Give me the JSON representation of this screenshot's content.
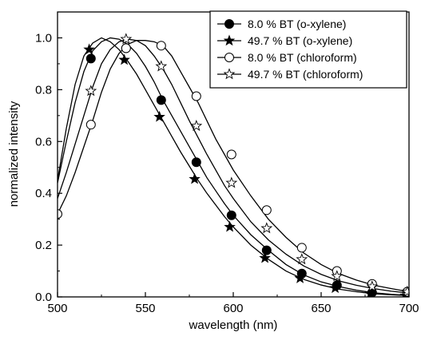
{
  "chart_data": {
    "type": "line",
    "xlabel": "wavelength (nm)",
    "ylabel": "normalized intensity",
    "xlim": [
      500,
      700
    ],
    "ylim": [
      0.0,
      1.1
    ],
    "x_ticks": [
      "500",
      "550",
      "600",
      "650",
      "700"
    ],
    "y_ticks": [
      "0.0",
      "0.2",
      "0.4",
      "0.6",
      "0.8",
      "1.0"
    ],
    "grid": false,
    "legend_position": "top-right",
    "series": [
      {
        "name": "8.0 % BT (o-xylene)",
        "marker": "filled-circle",
        "color": "#000000",
        "line_x": [
          500,
          505,
          510,
          515,
          520,
          525,
          530,
          535,
          540,
          545,
          550,
          555,
          560,
          565,
          570,
          575,
          580,
          585,
          590,
          595,
          600,
          610,
          620,
          630,
          640,
          650,
          660,
          670,
          680,
          690,
          700
        ],
        "line_y": [
          0.44,
          0.6,
          0.75,
          0.87,
          0.95,
          0.985,
          1.0,
          0.995,
          0.975,
          0.94,
          0.89,
          0.83,
          0.76,
          0.7,
          0.64,
          0.58,
          0.52,
          0.46,
          0.41,
          0.36,
          0.315,
          0.24,
          0.18,
          0.125,
          0.085,
          0.058,
          0.04,
          0.026,
          0.016,
          0.01,
          0.006
        ],
        "marker_x": [
          519,
          539,
          559,
          579,
          599,
          619,
          639,
          659,
          679,
          699
        ],
        "marker_y": [
          0.92,
          0.96,
          0.76,
          0.52,
          0.315,
          0.18,
          0.09,
          0.045,
          0.017,
          0.007
        ]
      },
      {
        "name": "49.7 % BT (o-xylene)",
        "marker": "filled-star",
        "color": "#000000",
        "line_x": [
          500,
          505,
          510,
          515,
          520,
          525,
          530,
          535,
          540,
          545,
          550,
          555,
          560,
          565,
          570,
          575,
          580,
          585,
          590,
          595,
          600,
          610,
          620,
          630,
          640,
          650,
          660,
          670,
          680,
          690,
          700
        ],
        "line_y": [
          0.45,
          0.65,
          0.82,
          0.93,
          0.98,
          1.0,
          0.985,
          0.955,
          0.91,
          0.86,
          0.8,
          0.74,
          0.68,
          0.62,
          0.56,
          0.505,
          0.45,
          0.4,
          0.355,
          0.31,
          0.27,
          0.2,
          0.145,
          0.1,
          0.068,
          0.046,
          0.03,
          0.02,
          0.012,
          0.008,
          0.005
        ],
        "marker_x": [
          518,
          538,
          558,
          578,
          598,
          618,
          638,
          658,
          678,
          698
        ],
        "marker_y": [
          0.955,
          0.915,
          0.695,
          0.455,
          0.27,
          0.15,
          0.072,
          0.034,
          0.012,
          0.005
        ]
      },
      {
        "name": "8.0 % BT (chloroform)",
        "marker": "open-circle",
        "color": "#000000",
        "line_x": [
          500,
          505,
          510,
          515,
          520,
          525,
          530,
          535,
          540,
          545,
          550,
          555,
          560,
          565,
          570,
          575,
          580,
          585,
          590,
          595,
          600,
          610,
          620,
          630,
          640,
          650,
          660,
          670,
          680,
          690,
          700
        ],
        "line_y": [
          0.32,
          0.39,
          0.48,
          0.58,
          0.68,
          0.79,
          0.88,
          0.94,
          0.975,
          0.99,
          0.99,
          0.985,
          0.97,
          0.93,
          0.87,
          0.81,
          0.75,
          0.68,
          0.61,
          0.55,
          0.49,
          0.39,
          0.3,
          0.23,
          0.17,
          0.125,
          0.09,
          0.065,
          0.045,
          0.032,
          0.02
        ],
        "marker_x": [
          500,
          519,
          539,
          559,
          579,
          599,
          619,
          639,
          659,
          679,
          699
        ],
        "marker_y": [
          0.32,
          0.665,
          0.96,
          0.97,
          0.775,
          0.55,
          0.335,
          0.19,
          0.1,
          0.05,
          0.02
        ]
      },
      {
        "name": "49.7 % BT (chloroform)",
        "marker": "open-star",
        "color": "#000000",
        "line_x": [
          500,
          505,
          510,
          515,
          520,
          525,
          530,
          535,
          540,
          545,
          550,
          555,
          560,
          565,
          570,
          575,
          580,
          585,
          590,
          595,
          600,
          610,
          620,
          630,
          640,
          650,
          660,
          670,
          680,
          690,
          700
        ],
        "line_y": [
          0.38,
          0.48,
          0.59,
          0.7,
          0.81,
          0.9,
          0.955,
          0.985,
          0.995,
          0.99,
          0.97,
          0.93,
          0.88,
          0.82,
          0.75,
          0.68,
          0.615,
          0.55,
          0.49,
          0.43,
          0.38,
          0.29,
          0.22,
          0.165,
          0.12,
          0.087,
          0.062,
          0.045,
          0.032,
          0.022,
          0.015
        ],
        "marker_x": [
          519,
          539,
          559,
          579,
          599,
          619,
          639,
          659,
          679,
          699
        ],
        "marker_y": [
          0.795,
          0.995,
          0.89,
          0.66,
          0.44,
          0.265,
          0.145,
          0.08,
          0.04,
          0.02
        ]
      }
    ]
  }
}
